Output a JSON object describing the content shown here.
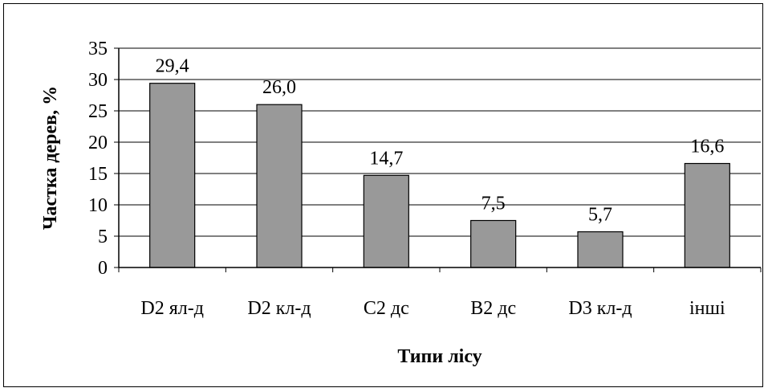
{
  "chart_data": {
    "type": "bar",
    "categories": [
      "D2 ял-д",
      "D2 кл-д",
      "C2 дс",
      "B2 дс",
      "D3 кл-д",
      "інші"
    ],
    "values": [
      29.4,
      26.0,
      14.7,
      7.5,
      5.7,
      16.6
    ],
    "data_labels": [
      "29,4",
      "26,0",
      "14,7",
      "7,5",
      "5,7",
      "16,6"
    ],
    "xlabel": "Типи лісу",
    "ylabel": "Частка дерев, %",
    "ylim": [
      0,
      35
    ],
    "yticks": [
      0,
      5,
      10,
      15,
      20,
      25,
      30,
      35
    ],
    "grid": true,
    "legend": "none",
    "colors": {
      "bar": "#999999",
      "bar_border": "#000000",
      "grid": "#000000",
      "plot_bg": "#ffffff"
    }
  }
}
